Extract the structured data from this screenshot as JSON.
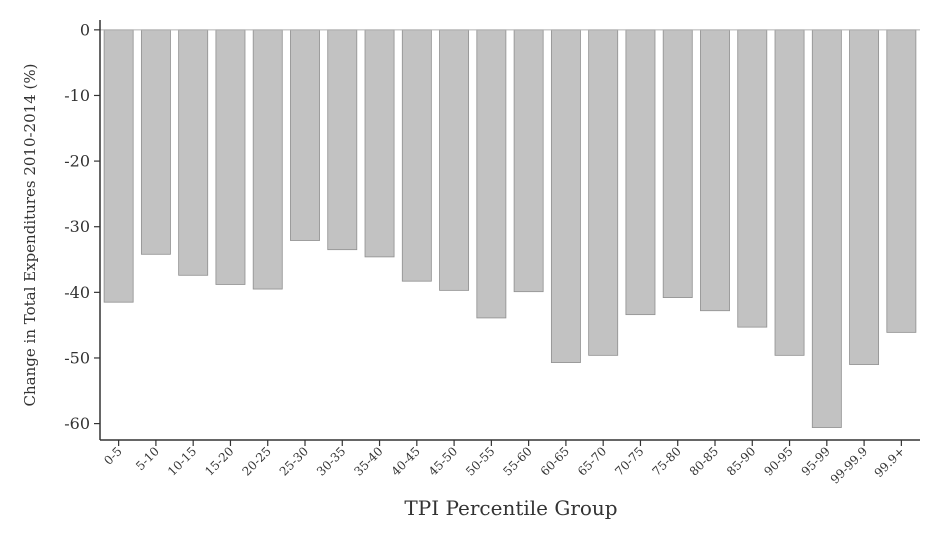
{
  "chart_data": {
    "type": "bar",
    "title": "",
    "xlabel": "TPI Percentile Group",
    "ylabel": "Change in Total Expenditures 2010-2014 (%)",
    "categories": [
      "0-5",
      "5-10",
      "10-15",
      "15-20",
      "20-25",
      "25-30",
      "30-35",
      "35-40",
      "40-45",
      "45-50",
      "50-55",
      "55-60",
      "60-65",
      "65-70",
      "70-75",
      "75-80",
      "80-85",
      "85-90",
      "90-95",
      "95-99",
      "99-99.9",
      "99.9+"
    ],
    "values": [
      -41.5,
      -34.2,
      -37.4,
      -38.8,
      -39.5,
      -32.1,
      -33.5,
      -34.6,
      -38.3,
      -39.7,
      -43.9,
      -39.9,
      -50.7,
      -49.6,
      -43.4,
      -40.8,
      -42.8,
      -45.3,
      -49.6,
      -60.6,
      -51.0,
      -46.1
    ],
    "yticks": [
      0,
      -10,
      -20,
      -30,
      -40,
      -50,
      -60
    ],
    "ylim": [
      -62.5,
      1.5
    ],
    "grid": false,
    "legend": "none",
    "bar_color": "#c2c2c2",
    "bar_edge_color": "#8f8f8f",
    "axis_color": "#333333"
  }
}
